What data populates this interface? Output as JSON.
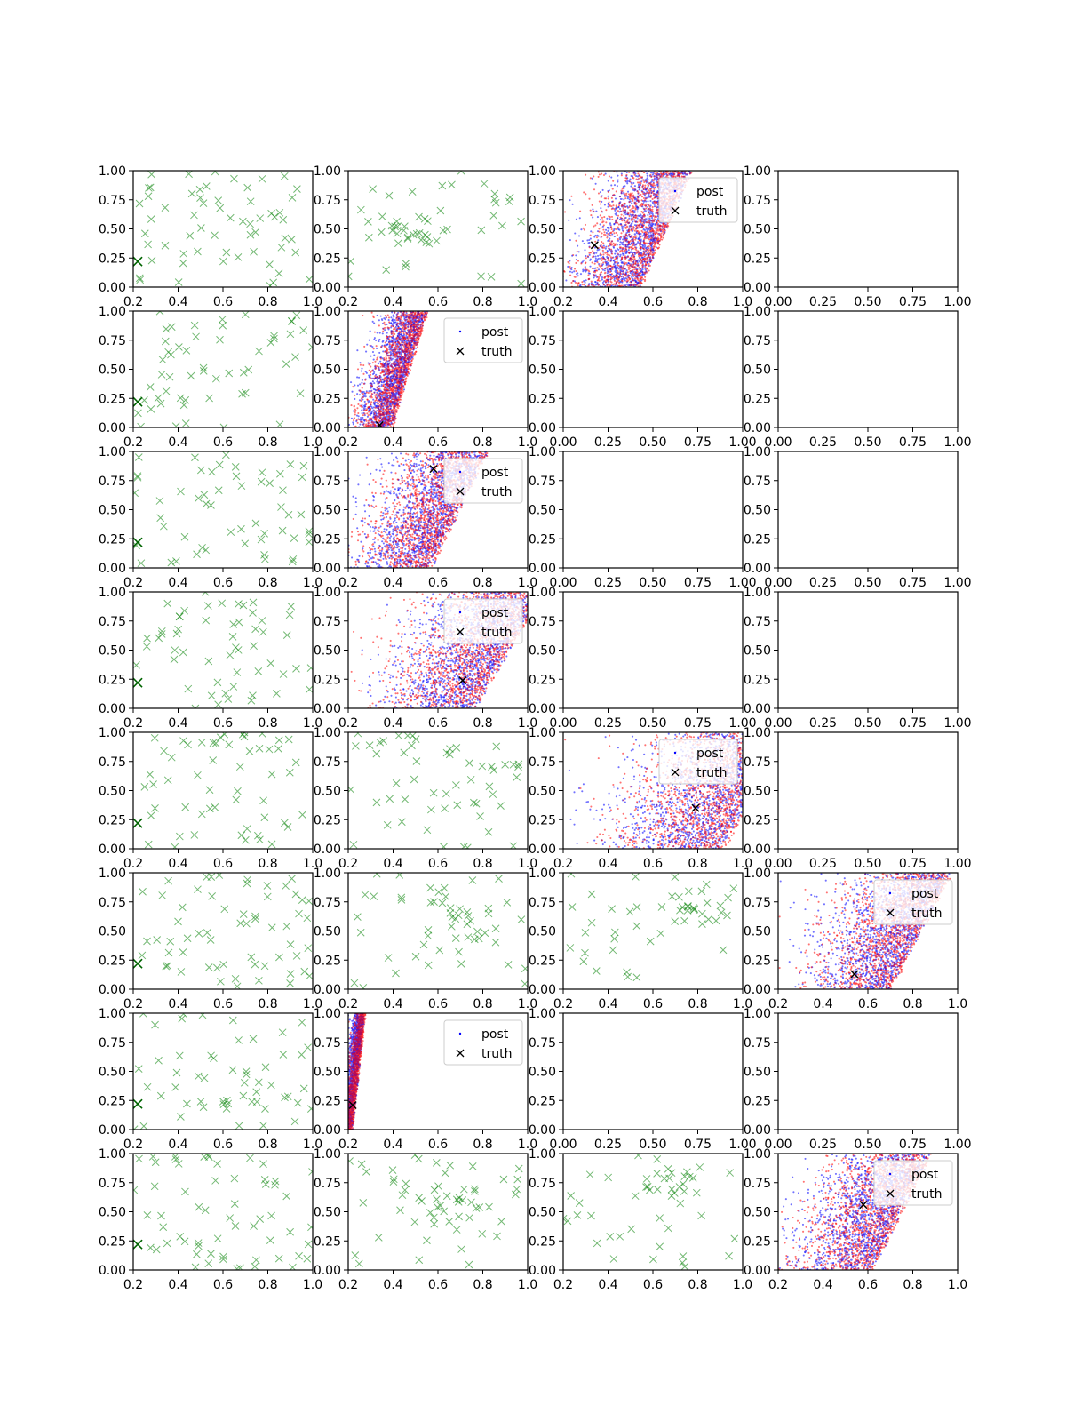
{
  "figure": {
    "title": "",
    "rows": 8,
    "cols": 4,
    "colors": {
      "scatter_marker": "#008000",
      "post_a": "#0000ff",
      "post_b": "#ff0000",
      "truth_marker": "#000000",
      "axis": "#000000",
      "legend_border": "#cccccc"
    }
  },
  "legend_labels": [
    "post",
    "truth"
  ],
  "chart_data": [
    {
      "row": 0,
      "col": 0,
      "type": "scatter",
      "xlim": [
        0.2,
        1.0
      ],
      "ylim": [
        0,
        1
      ],
      "xticks": [
        "0.2",
        "0.4",
        "0.6",
        "0.8",
        "1.0"
      ],
      "yticks": [
        "0.00",
        "0.25",
        "0.50",
        "0.75",
        "1.00"
      ],
      "series": [
        {
          "marker": "x",
          "color": "green",
          "n": 60,
          "seed": 11,
          "clusters": []
        },
        {
          "marker": "x",
          "color": "darkgreen",
          "points": [
            [
              0.22,
              0.22
            ]
          ]
        }
      ]
    },
    {
      "row": 0,
      "col": 1,
      "type": "scatter",
      "xlim": [
        0.2,
        1.0
      ],
      "ylim": [
        0,
        1
      ],
      "xticks": [
        "0.2",
        "0.4",
        "0.6",
        "0.8",
        "1.0"
      ],
      "yticks": [
        "0.00",
        "0.25",
        "0.50",
        "0.75",
        "1.00"
      ],
      "series": [
        {
          "marker": "x",
          "color": "green",
          "n": 55,
          "seed": 12,
          "clusters": [
            [
              0.45,
              0.48,
              0.1,
              0.08
            ]
          ]
        }
      ]
    },
    {
      "row": 0,
      "col": 2,
      "type": "posterior",
      "xlim": [
        0.2,
        1.0
      ],
      "ylim": [
        0,
        1
      ],
      "xticks": [
        "0.2",
        "0.4",
        "0.6",
        "0.8",
        "1.0"
      ],
      "yticks": [
        "0.00",
        "0.25",
        "0.50",
        "0.75",
        "1.00"
      ],
      "posterior": {
        "x0": 0.4,
        "x1": 0.68,
        "slope": 0.1,
        "spread": 0.1
      },
      "truth": [
        0.34,
        0.36
      ],
      "legend": [
        "post",
        "truth"
      ]
    },
    {
      "row": 0,
      "col": 3,
      "type": "empty",
      "xlim": [
        0,
        1
      ],
      "ylim": [
        0,
        1
      ],
      "xticks": [
        "0.00",
        "0.25",
        "0.50",
        "0.75",
        "1.00"
      ],
      "yticks": [
        "0.00",
        "0.25",
        "0.50",
        "0.75",
        "1.00"
      ]
    },
    {
      "row": 1,
      "col": 0,
      "type": "scatter",
      "xlim": [
        0.2,
        1.0
      ],
      "ylim": [
        0,
        1
      ],
      "xticks": [
        "0.2",
        "0.4",
        "0.6",
        "0.8",
        "1.0"
      ],
      "yticks": [
        "0.00",
        "0.25",
        "0.50",
        "0.75",
        "1.00"
      ],
      "series": [
        {
          "marker": "x",
          "color": "green",
          "n": 55,
          "seed": 21,
          "clusters": []
        },
        {
          "marker": "x",
          "color": "darkgreen",
          "points": [
            [
              0.22,
              0.22
            ]
          ]
        }
      ]
    },
    {
      "row": 1,
      "col": 1,
      "type": "posterior",
      "xlim": [
        0.2,
        1.0
      ],
      "ylim": [
        0,
        1
      ],
      "xticks": [
        "0.2",
        "0.4",
        "0.6",
        "0.8",
        "1.0"
      ],
      "yticks": [
        "0.00",
        "0.25",
        "0.50",
        "0.75",
        "1.00"
      ],
      "posterior": {
        "x0": 0.33,
        "x1": 0.46,
        "slope": 0.1,
        "spread": 0.05
      },
      "truth": [
        0.34,
        0.02
      ],
      "legend": [
        "post",
        "truth"
      ]
    },
    {
      "row": 1,
      "col": 2,
      "type": "empty",
      "xlim": [
        0,
        1
      ],
      "ylim": [
        0,
        1
      ],
      "xticks": [
        "0.00",
        "0.25",
        "0.50",
        "0.75",
        "1.00"
      ],
      "yticks": [
        "0.00",
        "0.25",
        "0.50",
        "0.75",
        "1.00"
      ]
    },
    {
      "row": 1,
      "col": 3,
      "type": "empty",
      "xlim": [
        0,
        1
      ],
      "ylim": [
        0,
        1
      ],
      "xticks": [
        "0.00",
        "0.25",
        "0.50",
        "0.75",
        "1.00"
      ],
      "yticks": [
        "0.00",
        "0.25",
        "0.50",
        "0.75",
        "1.00"
      ]
    },
    {
      "row": 2,
      "col": 0,
      "type": "scatter",
      "xlim": [
        0.2,
        1.0
      ],
      "ylim": [
        0,
        1
      ],
      "xticks": [
        "0.2",
        "0.4",
        "0.6",
        "0.8",
        "1.0"
      ],
      "yticks": [
        "0.00",
        "0.25",
        "0.50",
        "0.75",
        "1.00"
      ],
      "series": [
        {
          "marker": "x",
          "color": "green",
          "n": 55,
          "seed": 31,
          "clusters": []
        },
        {
          "marker": "x",
          "color": "darkgreen",
          "points": [
            [
              0.22,
              0.22
            ]
          ]
        }
      ]
    },
    {
      "row": 2,
      "col": 1,
      "type": "posterior",
      "xlim": [
        0.2,
        1.0
      ],
      "ylim": [
        0,
        1
      ],
      "xticks": [
        "0.2",
        "0.4",
        "0.6",
        "0.8",
        "1.0"
      ],
      "yticks": [
        "0.00",
        "0.25",
        "0.50",
        "0.75",
        "1.00"
      ],
      "posterior": {
        "x0": 0.45,
        "x1": 0.68,
        "slope": 0.15,
        "spread": 0.11
      },
      "truth": [
        0.58,
        0.85
      ],
      "legend": [
        "post",
        "truth"
      ]
    },
    {
      "row": 2,
      "col": 2,
      "type": "empty",
      "xlim": [
        0,
        1
      ],
      "ylim": [
        0,
        1
      ],
      "xticks": [
        "0.00",
        "0.25",
        "0.50",
        "0.75",
        "1.00"
      ],
      "yticks": [
        "0.00",
        "0.25",
        "0.50",
        "0.75",
        "1.00"
      ]
    },
    {
      "row": 2,
      "col": 3,
      "type": "empty",
      "xlim": [
        0,
        1
      ],
      "ylim": [
        0,
        1
      ],
      "xticks": [
        "0.00",
        "0.25",
        "0.50",
        "0.75",
        "1.00"
      ],
      "yticks": [
        "0.00",
        "0.25",
        "0.50",
        "0.75",
        "1.00"
      ]
    },
    {
      "row": 3,
      "col": 0,
      "type": "scatter",
      "xlim": [
        0.2,
        1.0
      ],
      "ylim": [
        0,
        1
      ],
      "xticks": [
        "0.2",
        "0.4",
        "0.6",
        "0.8",
        "1.0"
      ],
      "yticks": [
        "0.00",
        "0.25",
        "0.50",
        "0.75",
        "1.00"
      ],
      "series": [
        {
          "marker": "x",
          "color": "green",
          "n": 55,
          "seed": 41,
          "clusters": []
        },
        {
          "marker": "x",
          "color": "darkgreen",
          "points": [
            [
              0.22,
              0.22
            ]
          ]
        }
      ]
    },
    {
      "row": 3,
      "col": 1,
      "type": "posterior",
      "xlim": [
        0.2,
        1.0
      ],
      "ylim": [
        0,
        1
      ],
      "xticks": [
        "0.2",
        "0.4",
        "0.6",
        "0.8",
        "1.0"
      ],
      "yticks": [
        "0.00",
        "0.25",
        "0.50",
        "0.75",
        "1.00"
      ],
      "posterior": {
        "x0": 0.62,
        "x1": 0.9,
        "slope": 0.18,
        "spread": 0.14
      },
      "truth": [
        0.71,
        0.24
      ],
      "legend": [
        "post",
        "truth"
      ]
    },
    {
      "row": 3,
      "col": 2,
      "type": "empty",
      "xlim": [
        0,
        1
      ],
      "ylim": [
        0,
        1
      ],
      "xticks": [
        "0.00",
        "0.25",
        "0.50",
        "0.75",
        "1.00"
      ],
      "yticks": [
        "0.00",
        "0.25",
        "0.50",
        "0.75",
        "1.00"
      ]
    },
    {
      "row": 3,
      "col": 3,
      "type": "empty",
      "xlim": [
        0,
        1
      ],
      "ylim": [
        0,
        1
      ],
      "xticks": [
        "0.00",
        "0.25",
        "0.50",
        "0.75",
        "1.00"
      ],
      "yticks": [
        "0.00",
        "0.25",
        "0.50",
        "0.75",
        "1.00"
      ]
    },
    {
      "row": 4,
      "col": 0,
      "type": "scatter",
      "xlim": [
        0.2,
        1.0
      ],
      "ylim": [
        0,
        1
      ],
      "xticks": [
        "0.2",
        "0.4",
        "0.6",
        "0.8",
        "1.0"
      ],
      "yticks": [
        "0.00",
        "0.25",
        "0.50",
        "0.75",
        "1.00"
      ],
      "series": [
        {
          "marker": "x",
          "color": "green",
          "n": 55,
          "seed": 51,
          "clusters": []
        },
        {
          "marker": "x",
          "color": "darkgreen",
          "points": [
            [
              0.22,
              0.22
            ]
          ]
        }
      ]
    },
    {
      "row": 4,
      "col": 1,
      "type": "scatter",
      "xlim": [
        0.2,
        1.0
      ],
      "ylim": [
        0,
        1
      ],
      "xticks": [
        "0.2",
        "0.4",
        "0.6",
        "0.8",
        "1.0"
      ],
      "yticks": [
        "0.00",
        "0.25",
        "0.50",
        "0.75",
        "1.00"
      ],
      "series": [
        {
          "marker": "x",
          "color": "green",
          "n": 55,
          "seed": 52,
          "clusters": []
        }
      ]
    },
    {
      "row": 4,
      "col": 2,
      "type": "posterior",
      "xlim": [
        0.2,
        1.0
      ],
      "ylim": [
        0,
        1
      ],
      "xticks": [
        "0.2",
        "0.4",
        "0.6",
        "0.8",
        "1.0"
      ],
      "yticks": [
        "0.00",
        "0.25",
        "0.50",
        "0.75",
        "1.00"
      ],
      "posterior": {
        "x0": 0.78,
        "x1": 1.05,
        "slope": 0.15,
        "spread": 0.17
      },
      "truth": [
        0.79,
        0.35
      ],
      "legend": [
        "post",
        "truth"
      ]
    },
    {
      "row": 4,
      "col": 3,
      "type": "empty",
      "xlim": [
        0,
        1
      ],
      "ylim": [
        0,
        1
      ],
      "xticks": [
        "0.00",
        "0.25",
        "0.50",
        "0.75",
        "1.00"
      ],
      "yticks": [
        "0.00",
        "0.25",
        "0.50",
        "0.75",
        "1.00"
      ]
    },
    {
      "row": 5,
      "col": 0,
      "type": "scatter",
      "xlim": [
        0.2,
        1.0
      ],
      "ylim": [
        0,
        1
      ],
      "xticks": [
        "0.2",
        "0.4",
        "0.6",
        "0.8",
        "1.0"
      ],
      "yticks": [
        "0.00",
        "0.25",
        "0.50",
        "0.75",
        "1.00"
      ],
      "series": [
        {
          "marker": "x",
          "color": "green",
          "n": 60,
          "seed": 61,
          "clusters": []
        },
        {
          "marker": "x",
          "color": "darkgreen",
          "points": [
            [
              0.22,
              0.22
            ]
          ]
        }
      ]
    },
    {
      "row": 5,
      "col": 1,
      "type": "scatter",
      "xlim": [
        0.2,
        1.0
      ],
      "ylim": [
        0,
        1
      ],
      "xticks": [
        "0.2",
        "0.4",
        "0.6",
        "0.8",
        "1.0"
      ],
      "yticks": [
        "0.00",
        "0.25",
        "0.50",
        "0.75",
        "1.00"
      ],
      "series": [
        {
          "marker": "x",
          "color": "green",
          "n": 55,
          "seed": 62,
          "clusters": [
            [
              0.68,
              0.55,
              0.12,
              0.12
            ]
          ]
        }
      ]
    },
    {
      "row": 5,
      "col": 2,
      "type": "scatter",
      "xlim": [
        0.2,
        1.0
      ],
      "ylim": [
        0,
        1
      ],
      "xticks": [
        "0.2",
        "0.4",
        "0.6",
        "0.8",
        "1.0"
      ],
      "yticks": [
        "0.00",
        "0.25",
        "0.50",
        "0.75",
        "1.00"
      ],
      "series": [
        {
          "marker": "x",
          "color": "green",
          "n": 50,
          "seed": 63,
          "clusters": [
            [
              0.72,
              0.72,
              0.1,
              0.1
            ]
          ]
        }
      ]
    },
    {
      "row": 5,
      "col": 3,
      "type": "posterior",
      "xlim": [
        0.2,
        1.0
      ],
      "ylim": [
        0,
        1
      ],
      "xticks": [
        "0.2",
        "0.4",
        "0.6",
        "0.8",
        "1.0"
      ],
      "yticks": [
        "0.00",
        "0.25",
        "0.50",
        "0.75",
        "1.00"
      ],
      "posterior": {
        "x0": 0.58,
        "x1": 0.82,
        "slope": 0.16,
        "spread": 0.12
      },
      "truth": [
        0.54,
        0.13
      ],
      "legend": [
        "post",
        "truth"
      ]
    },
    {
      "row": 6,
      "col": 0,
      "type": "scatter",
      "xlim": [
        0.2,
        1.0
      ],
      "ylim": [
        0,
        1
      ],
      "xticks": [
        "0.2",
        "0.4",
        "0.6",
        "0.8",
        "1.0"
      ],
      "yticks": [
        "0.00",
        "0.25",
        "0.50",
        "0.75",
        "1.00"
      ],
      "series": [
        {
          "marker": "x",
          "color": "green",
          "n": 55,
          "seed": 71,
          "clusters": []
        },
        {
          "marker": "x",
          "color": "darkgreen",
          "points": [
            [
              0.22,
              0.22
            ]
          ]
        }
      ]
    },
    {
      "row": 6,
      "col": 1,
      "type": "posterior",
      "xlim": [
        0.2,
        1.0
      ],
      "ylim": [
        0,
        1
      ],
      "xticks": [
        "0.2",
        "0.4",
        "0.6",
        "0.8",
        "1.0"
      ],
      "yticks": [
        "0.00",
        "0.25",
        "0.50",
        "0.75",
        "1.00"
      ],
      "posterior": {
        "x0": 0.2,
        "x1": 0.24,
        "slope": 0.04,
        "spread": 0.012
      },
      "truth": [
        0.22,
        0.21
      ],
      "legend": [
        "post",
        "truth"
      ]
    },
    {
      "row": 6,
      "col": 2,
      "type": "empty",
      "xlim": [
        0,
        1
      ],
      "ylim": [
        0,
        1
      ],
      "xticks": [
        "0.00",
        "0.25",
        "0.50",
        "0.75",
        "1.00"
      ],
      "yticks": [
        "0.00",
        "0.25",
        "0.50",
        "0.75",
        "1.00"
      ]
    },
    {
      "row": 6,
      "col": 3,
      "type": "empty",
      "xlim": [
        0,
        1
      ],
      "ylim": [
        0,
        1
      ],
      "xticks": [
        "0.00",
        "0.25",
        "0.50",
        "0.75",
        "1.00"
      ],
      "yticks": [
        "0.00",
        "0.25",
        "0.50",
        "0.75",
        "1.00"
      ]
    },
    {
      "row": 7,
      "col": 0,
      "type": "scatter",
      "xlim": [
        0.2,
        1.0
      ],
      "ylim": [
        0,
        1
      ],
      "xticks": [
        "0.2",
        "0.4",
        "0.6",
        "0.8",
        "1.0"
      ],
      "yticks": [
        "0.00",
        "0.25",
        "0.50",
        "0.75",
        "1.00"
      ],
      "series": [
        {
          "marker": "x",
          "color": "green",
          "n": 60,
          "seed": 81,
          "clusters": []
        },
        {
          "marker": "x",
          "color": "darkgreen",
          "points": [
            [
              0.22,
              0.22
            ]
          ]
        }
      ]
    },
    {
      "row": 7,
      "col": 1,
      "type": "scatter",
      "xlim": [
        0.2,
        1.0
      ],
      "ylim": [
        0,
        1
      ],
      "xticks": [
        "0.2",
        "0.4",
        "0.6",
        "0.8",
        "1.0"
      ],
      "yticks": [
        "0.00",
        "0.25",
        "0.50",
        "0.75",
        "1.00"
      ],
      "series": [
        {
          "marker": "x",
          "color": "green",
          "n": 60,
          "seed": 82,
          "clusters": [
            [
              0.6,
              0.55,
              0.12,
              0.12
            ]
          ]
        }
      ]
    },
    {
      "row": 7,
      "col": 2,
      "type": "scatter",
      "xlim": [
        0.2,
        1.0
      ],
      "ylim": [
        0,
        1
      ],
      "xticks": [
        "0.2",
        "0.4",
        "0.6",
        "0.8",
        "1.0"
      ],
      "yticks": [
        "0.00",
        "0.25",
        "0.50",
        "0.75",
        "1.00"
      ],
      "series": [
        {
          "marker": "x",
          "color": "green",
          "n": 50,
          "seed": 83,
          "clusters": [
            [
              0.68,
              0.7,
              0.08,
              0.1
            ]
          ]
        }
      ]
    },
    {
      "row": 7,
      "col": 3,
      "type": "posterior",
      "xlim": [
        0.2,
        1.0
      ],
      "ylim": [
        0,
        1
      ],
      "xticks": [
        "0.2",
        "0.4",
        "0.6",
        "0.8",
        "1.0"
      ],
      "yticks": [
        "0.00",
        "0.25",
        "0.50",
        "0.75",
        "1.00"
      ],
      "posterior": {
        "x0": 0.48,
        "x1": 0.75,
        "slope": 0.14,
        "spread": 0.12
      },
      "truth": [
        0.58,
        0.56
      ],
      "legend": [
        "post",
        "truth"
      ]
    }
  ]
}
